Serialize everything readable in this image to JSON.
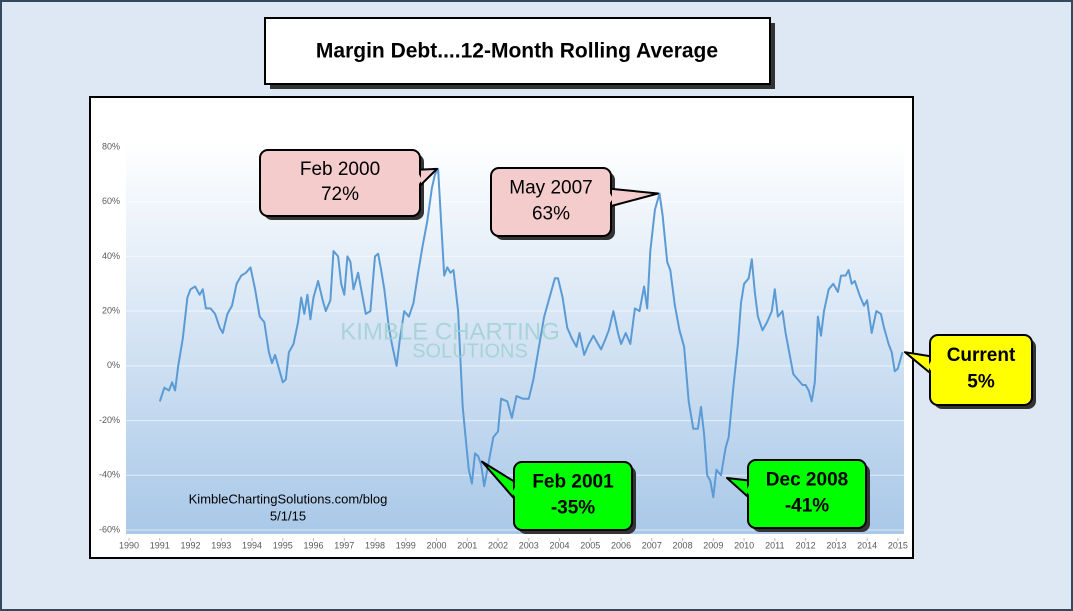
{
  "chart_data": {
    "type": "line",
    "title": "Margin Debt....12-Month Rolling Average",
    "color": "#5b9bd5",
    "xlim": [
      1990,
      2015.2
    ],
    "ylim": [
      -60,
      80
    ],
    "xticks": [
      1990,
      1991,
      1992,
      1993,
      1994,
      1995,
      1996,
      1997,
      1998,
      1999,
      2000,
      2001,
      2002,
      2003,
      2004,
      2005,
      2006,
      2007,
      2008,
      2009,
      2010,
      2011,
      2012,
      2013,
      2014,
      2015
    ],
    "yticks": [
      {
        "value": -60,
        "label": "-60%"
      },
      {
        "value": -40,
        "label": "-40%"
      },
      {
        "value": -20,
        "label": "-20%"
      },
      {
        "value": 0,
        "label": "0%"
      },
      {
        "value": 20,
        "label": "20%"
      },
      {
        "value": 40,
        "label": "40%"
      },
      {
        "value": 60,
        "label": "60%"
      },
      {
        "value": 80,
        "label": "80%"
      }
    ],
    "grid": true,
    "x": [
      1991.0,
      1991.15,
      1991.3,
      1991.4,
      1991.5,
      1991.6,
      1991.75,
      1991.9,
      1992.0,
      1992.15,
      1992.3,
      1992.4,
      1992.5,
      1992.65,
      1992.8,
      1992.95,
      1993.05,
      1993.2,
      1993.35,
      1993.5,
      1993.65,
      1993.8,
      1993.95,
      1994.1,
      1994.25,
      1994.4,
      1994.55,
      1994.65,
      1994.75,
      1994.9,
      1995.0,
      1995.1,
      1995.2,
      1995.35,
      1995.5,
      1995.6,
      1995.7,
      1995.8,
      1995.9,
      1996.0,
      1996.15,
      1996.3,
      1996.4,
      1996.55,
      1996.65,
      1996.8,
      1996.9,
      1997.0,
      1997.1,
      1997.2,
      1997.3,
      1997.45,
      1997.55,
      1997.7,
      1997.85,
      1998.0,
      1998.1,
      1998.2,
      1998.3,
      1998.45,
      1998.55,
      1998.7,
      1998.8,
      1998.95,
      1999.1,
      1999.25,
      1999.4,
      1999.55,
      1999.7,
      1999.85,
      1999.95,
      2000.05,
      2000.15,
      2000.25,
      2000.35,
      2000.45,
      2000.55,
      2000.7,
      2000.85,
      2000.95,
      2001.05,
      2001.15,
      2001.25,
      2001.35,
      2001.45,
      2001.55,
      2001.7,
      2001.85,
      2002.0,
      2002.1,
      2002.3,
      2002.45,
      2002.6,
      2002.8,
      2003.0,
      2003.15,
      2003.3,
      2003.5,
      2003.7,
      2003.85,
      2003.95,
      2004.1,
      2004.25,
      2004.4,
      2004.55,
      2004.65,
      2004.8,
      2004.95,
      2005.1,
      2005.25,
      2005.35,
      2005.5,
      2005.6,
      2005.75,
      2005.9,
      2006.0,
      2006.15,
      2006.3,
      2006.45,
      2006.6,
      2006.75,
      2006.85,
      2006.95,
      2007.1,
      2007.25,
      2007.35,
      2007.5,
      2007.6,
      2007.75,
      2007.9,
      2008.05,
      2008.2,
      2008.35,
      2008.5,
      2008.6,
      2008.7,
      2008.8,
      2008.9,
      2009.0,
      2009.1,
      2009.25,
      2009.4,
      2009.5,
      2009.65,
      2009.8,
      2009.9,
      2010.0,
      2010.15,
      2010.25,
      2010.35,
      2010.45,
      2010.6,
      2010.75,
      2010.9,
      2011.0,
      2011.1,
      2011.25,
      2011.35,
      2011.5,
      2011.6,
      2011.75,
      2011.9,
      2012.0,
      2012.1,
      2012.2,
      2012.3,
      2012.4,
      2012.5,
      2012.6,
      2012.75,
      2012.9,
      2013.05,
      2013.15,
      2013.3,
      2013.4,
      2013.5,
      2013.6,
      2013.75,
      2013.9,
      2014.0,
      2014.15,
      2014.3,
      2014.45,
      2014.55,
      2014.7,
      2014.8,
      2014.9,
      2015.0,
      2015.15
    ],
    "values": [
      -13,
      -8,
      -9,
      -6,
      -9,
      0,
      10,
      25,
      28,
      29,
      26,
      28,
      21,
      21,
      19,
      14,
      12,
      19,
      22,
      30,
      33,
      34,
      36,
      28,
      18,
      16,
      5,
      1,
      4,
      -2,
      -6,
      -5,
      5,
      8,
      16,
      25,
      19,
      26,
      17,
      25,
      31,
      24,
      20,
      24,
      42,
      40,
      30,
      26,
      40,
      38,
      28,
      34,
      28,
      19,
      20,
      40,
      41,
      35,
      28,
      14,
      8,
      0,
      9,
      20,
      18,
      23,
      34,
      44,
      53,
      65,
      70,
      72,
      52,
      33,
      36,
      34,
      35,
      20,
      -15,
      -27,
      -38,
      -43,
      -32,
      -33,
      -36,
      -44,
      -35,
      -26,
      -24,
      -12,
      -13,
      -19,
      -11,
      -12,
      -12,
      -5,
      5,
      18,
      26,
      32,
      32,
      25,
      14,
      10,
      7,
      12,
      4,
      8,
      11,
      8,
      6,
      10,
      13,
      20,
      12,
      8,
      12,
      8,
      21,
      20,
      29,
      21,
      42,
      57,
      63,
      55,
      38,
      35,
      22,
      13,
      7,
      -13,
      -23,
      -23,
      -15,
      -25,
      -40,
      -42,
      -48,
      -38,
      -40,
      -30,
      -26,
      -8,
      8,
      23,
      30,
      32,
      39,
      27,
      18,
      13,
      16,
      20,
      28,
      18,
      20,
      12,
      3,
      -3,
      -5,
      -7,
      -7,
      -9,
      -13,
      -6,
      18,
      11,
      20,
      28,
      30,
      27,
      33,
      33,
      35,
      30,
      31,
      26,
      22,
      24,
      12,
      20,
      19,
      14,
      8,
      5,
      -2,
      -1,
      5
    ],
    "annotations": [
      {
        "label": "Feb 2000",
        "value": 72,
        "value_label": "72%",
        "color": "#f4cccc"
      },
      {
        "label": "May 2007",
        "value": 63,
        "value_label": "63%",
        "color": "#f4cccc"
      },
      {
        "label": "Feb 2001",
        "value": -35,
        "value_label": "-35%",
        "color": "#00ff00"
      },
      {
        "label": "Dec 2008",
        "value": -41,
        "value_label": "-41%",
        "color": "#00ff00"
      },
      {
        "label": "Current",
        "value": 5,
        "value_label": "5%",
        "color": "#ffff00"
      }
    ],
    "watermark": [
      "KIMBLE CHARTING",
      "SOLUTIONS"
    ],
    "source": "KimbleChartingSolutions.com/blog",
    "date": "5/1/15"
  }
}
